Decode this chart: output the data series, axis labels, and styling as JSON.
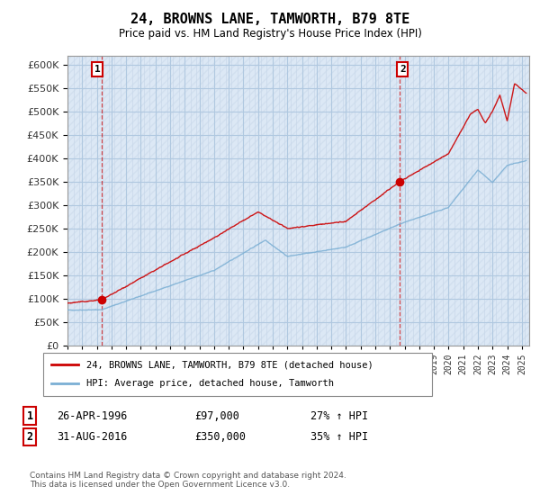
{
  "title": "24, BROWNS LANE, TAMWORTH, B79 8TE",
  "subtitle": "Price paid vs. HM Land Registry's House Price Index (HPI)",
  "ylim": [
    0,
    620000
  ],
  "yticks": [
    0,
    50000,
    100000,
    150000,
    200000,
    250000,
    300000,
    350000,
    400000,
    450000,
    500000,
    550000,
    600000
  ],
  "sale1": {
    "date_num": 1996.32,
    "price": 97000,
    "label": "1"
  },
  "sale2": {
    "date_num": 2016.66,
    "price": 350000,
    "label": "2"
  },
  "legend_line1": "24, BROWNS LANE, TAMWORTH, B79 8TE (detached house)",
  "legend_line2": "HPI: Average price, detached house, Tamworth",
  "footer": "Contains HM Land Registry data © Crown copyright and database right 2024.\nThis data is licensed under the Open Government Licence v3.0.",
  "line_color_red": "#cc0000",
  "line_color_blue": "#7bafd4",
  "background_color": "#ffffff",
  "plot_bg_color": "#dce8f5",
  "grid_color": "#b0c8e0",
  "hatch_color": "#c8d8ea",
  "annotation_box_color": "#cc0000"
}
